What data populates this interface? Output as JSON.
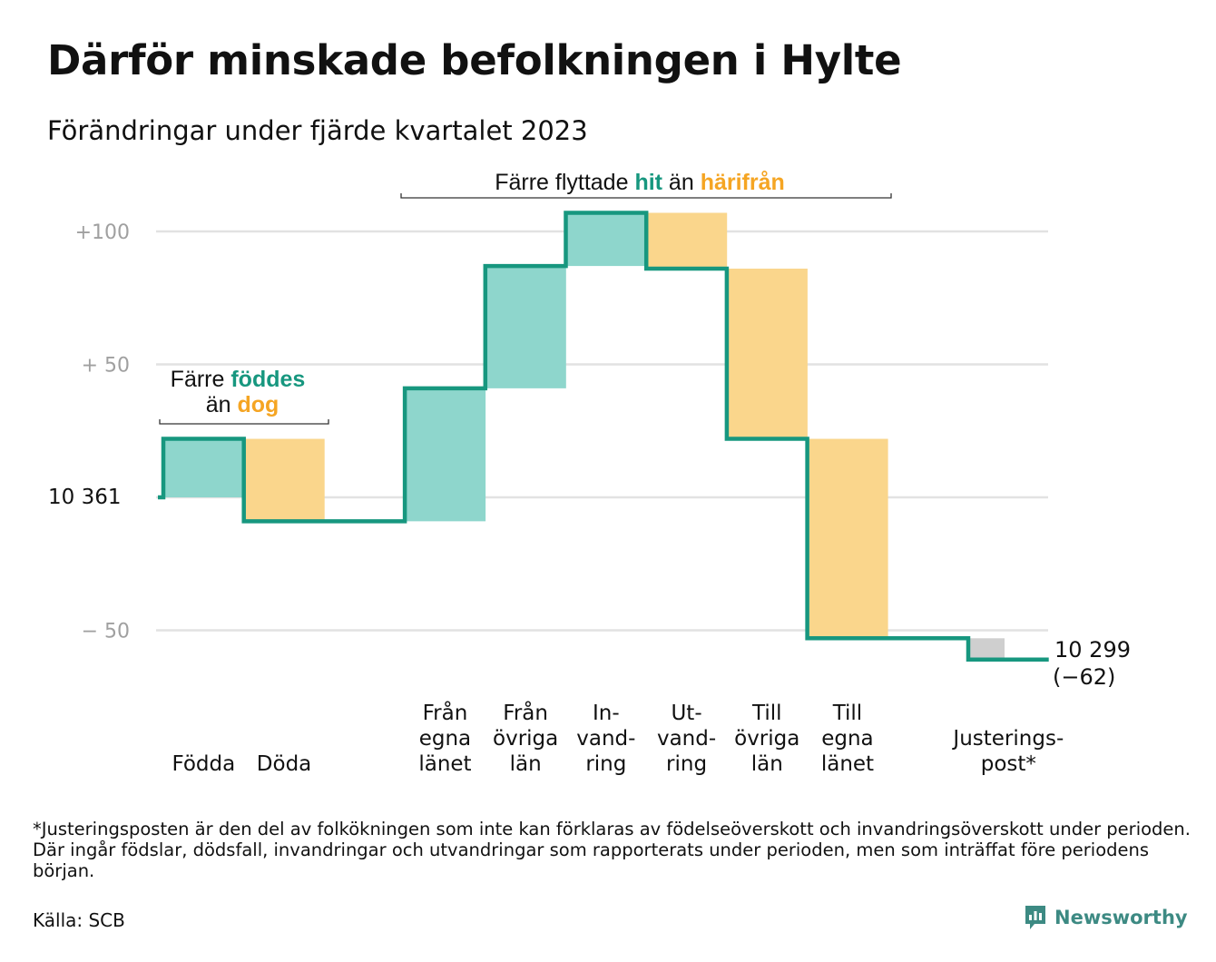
{
  "title": "Därför minskade befolkningen i Hylte",
  "subtitle": "Förändringar under fjärde kvartalet 2023",
  "footnote": "*Justeringsposten är den del av folkökningen som inte kan förklaras av födelseöverskott och invandringsöverskott under perioden. Där ingår födslar, dödsfall, invandringar och utvandringar som rapporterats under perioden, men som inträffat före periodens början.",
  "source": "Källa: SCB",
  "brand": "Newsworthy",
  "colors": {
    "teal": "#17977f",
    "teal_fill": "#8ed6cc",
    "orange": "#f5a523",
    "orange_fill": "#fad68c",
    "gray_fill": "#cfcfcf",
    "grid": "#e2e2e2",
    "axis_text": "#a0a0a0",
    "brand": "#3d8a83"
  },
  "annotations": {
    "births": {
      "line1_a": "Färre ",
      "line1_b": "föddes",
      "line2_a": "än ",
      "line2_b": "dog"
    },
    "moves": {
      "a": "Färre flyttade ",
      "b": "hit",
      "c": " än ",
      "d": "härifrån"
    }
  },
  "chart_data": {
    "type": "waterfall",
    "start_value": 10361,
    "start_label": "10  361",
    "end_value": 10299,
    "end_label": "10 299",
    "change_label": "(−62)",
    "ylim": [
      -70,
      110
    ],
    "yticks": [
      {
        "value": 100,
        "label": "+100"
      },
      {
        "value": 50,
        "label": "+  50"
      },
      {
        "value": 0,
        "label": ""
      },
      {
        "value": -50,
        "label": "−  50"
      }
    ],
    "grid": true,
    "steps": [
      {
        "label": [
          "Födda"
        ],
        "value": 22,
        "kind": "in"
      },
      {
        "label": [
          "Döda"
        ],
        "value": -31,
        "kind": "out"
      },
      {
        "label": [
          "",
          ""
        ],
        "value": 0,
        "kind": "gap"
      },
      {
        "label": [
          "Från",
          "egna",
          "länet"
        ],
        "value": 50,
        "kind": "in"
      },
      {
        "label": [
          "Från",
          "övriga",
          "län"
        ],
        "value": 46,
        "kind": "in"
      },
      {
        "label": [
          "In-",
          "vand-",
          "ring"
        ],
        "value": 20,
        "kind": "in"
      },
      {
        "label": [
          "Ut-",
          "vand-",
          "ring"
        ],
        "value": -21,
        "kind": "out"
      },
      {
        "label": [
          "Till",
          "övriga",
          "län"
        ],
        "value": -64,
        "kind": "out"
      },
      {
        "label": [
          "Till",
          "egna",
          "länet"
        ],
        "value": -75,
        "kind": "out"
      },
      {
        "label": [
          "",
          ""
        ],
        "value": 0,
        "kind": "gap"
      },
      {
        "label": [
          "Justerings-",
          "post*"
        ],
        "value": -8,
        "kind": "adjust"
      }
    ]
  }
}
